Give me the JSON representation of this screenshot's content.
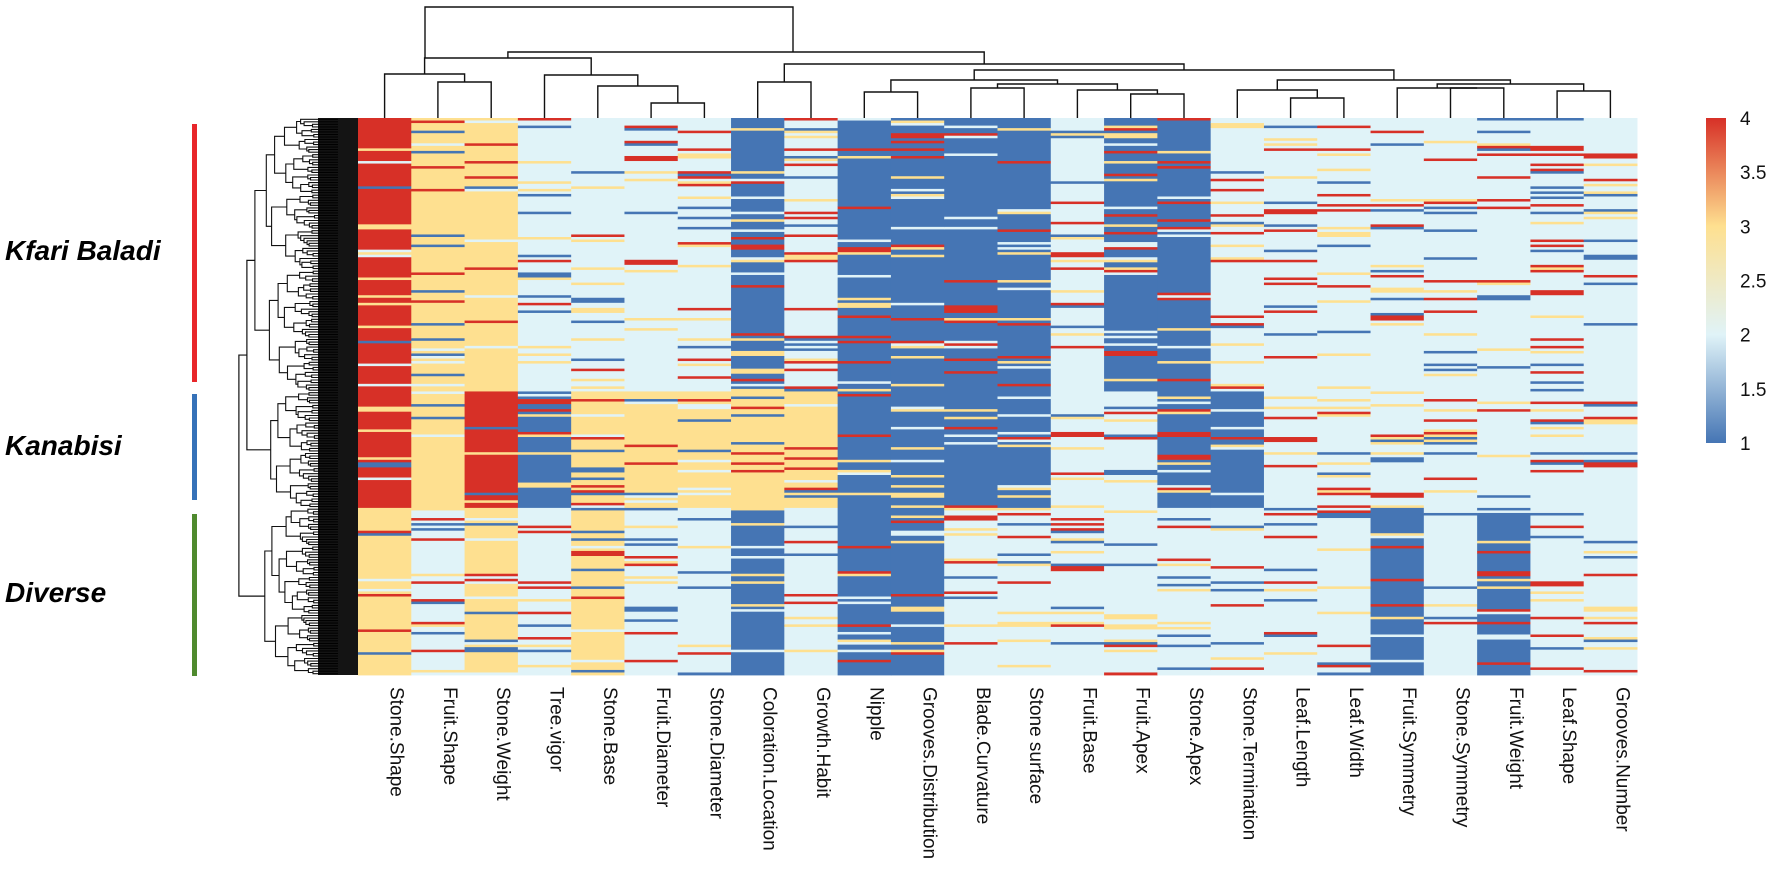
{
  "chart_data": {
    "type": "heatmap",
    "title": "",
    "columns": [
      "Stone.Shape",
      "Fruit.Shape",
      "Stone.Weight",
      "Tree.vigor",
      "Stone.Base",
      "Fruit.Diameter",
      "Stone.Diameter",
      "Coloration.Location",
      "Growth.Habit",
      "Nipple",
      "Grooves.Distribution",
      "Blade.Curvature",
      "Stone  surface",
      "Fruit.Base",
      "Fruit.Apex",
      "Stone.Apex",
      "Stone.Termination",
      "Leaf.Length",
      "Leaf.Width",
      "Fruit.Symmetry",
      "Stone.Symmetry",
      "Fruit.Weight",
      "Leaf.Shape",
      "Grooves.Number"
    ],
    "groups": [
      {
        "name": "Kfari Baladi",
        "color": "#e8262a"
      },
      {
        "name": "Kanabisi",
        "color": "#3571b8"
      },
      {
        "name": "Diverse",
        "color": "#4f8a2e"
      }
    ],
    "group_row_fraction": [
      0.49,
      0.21,
      0.3
    ],
    "dominant_values": [
      [
        4,
        3,
        3,
        2,
        2,
        2,
        2,
        1,
        2,
        1,
        1,
        1,
        1,
        2,
        1,
        1,
        2,
        2,
        2,
        2,
        2,
        2,
        2,
        2
      ],
      [
        4,
        3,
        4,
        1,
        3,
        3,
        3,
        3,
        3,
        1,
        1,
        1,
        1,
        2,
        2,
        1,
        1,
        2,
        2,
        2,
        2,
        2,
        2,
        2
      ],
      [
        3,
        2,
        3,
        2,
        3,
        2,
        2,
        1,
        2,
        1,
        1,
        2,
        2,
        2,
        2,
        2,
        2,
        2,
        2,
        1,
        2,
        1,
        2,
        2
      ]
    ],
    "color_scale": {
      "min": 1,
      "max": 4,
      "ticks": [
        "4",
        "3.5",
        "3",
        "2.5",
        "2",
        "1.5",
        "1"
      ],
      "stops": [
        {
          "value": 1,
          "color": "#4575b4"
        },
        {
          "value": 2,
          "color": "#e0f3f8"
        },
        {
          "value": 3,
          "color": "#fee090"
        },
        {
          "value": 4,
          "color": "#d73027"
        }
      ]
    }
  }
}
